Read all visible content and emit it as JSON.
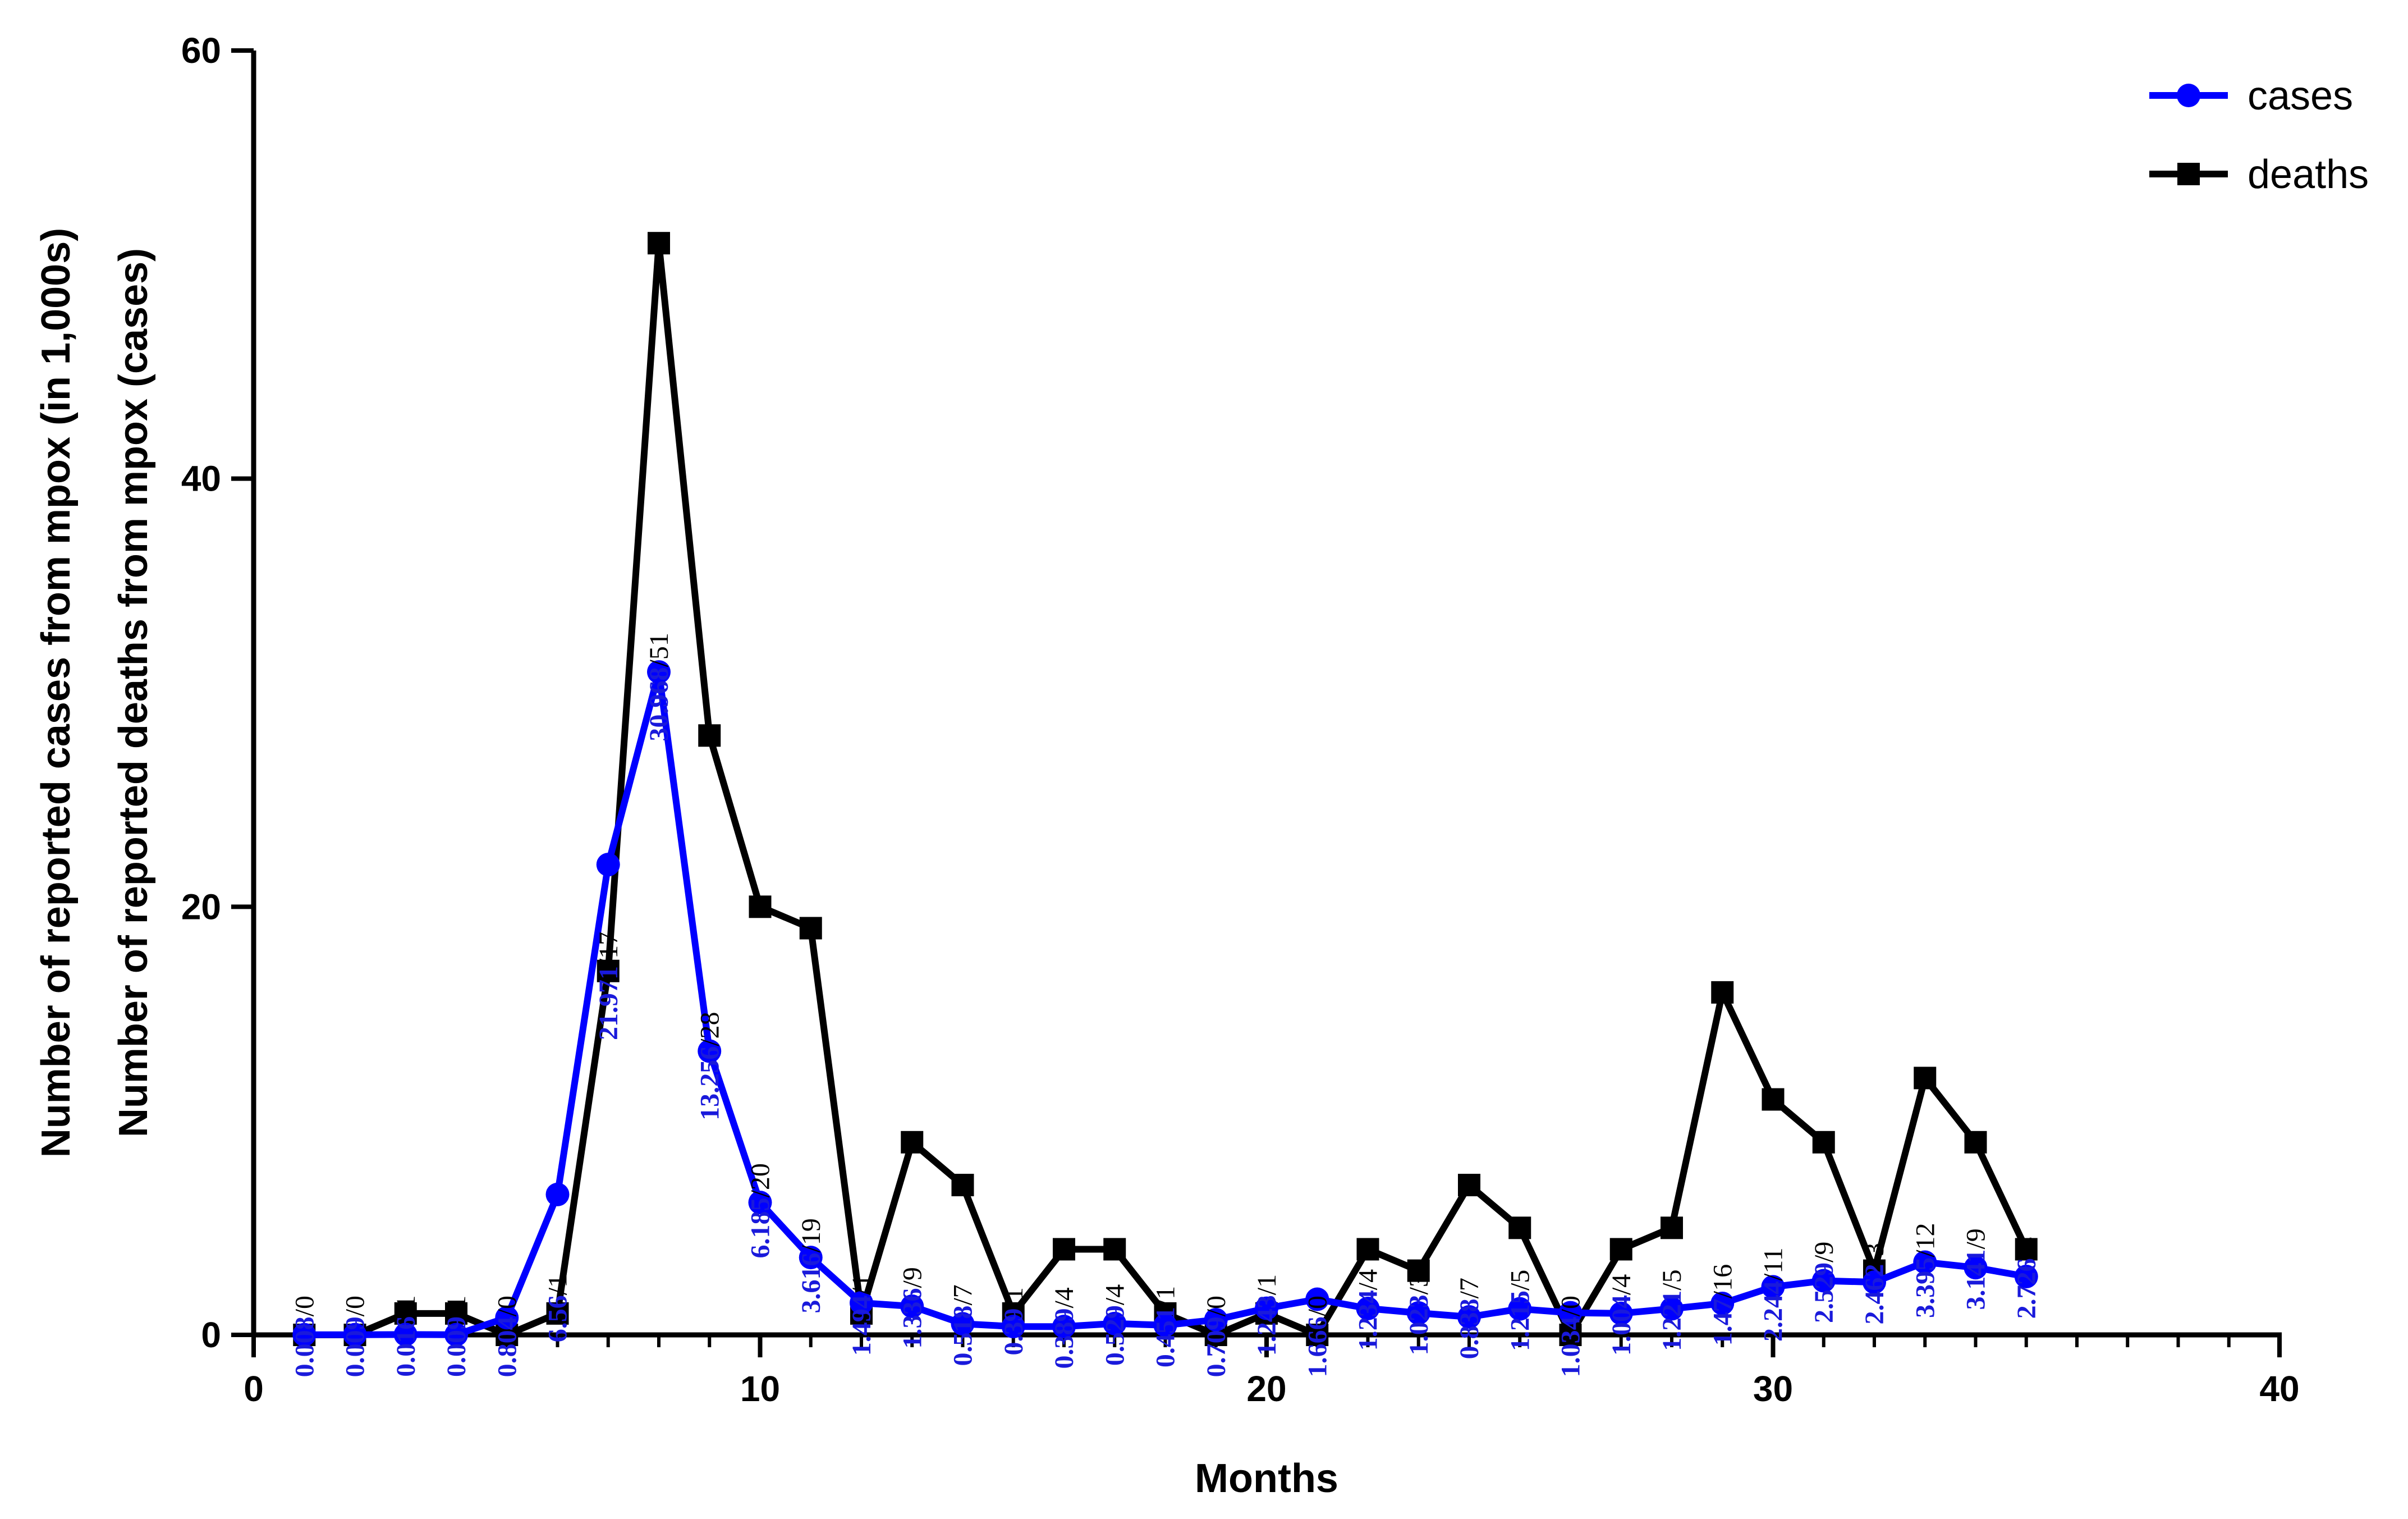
{
  "chart_data": {
    "type": "line",
    "title": "",
    "xlabel": "Months",
    "ylabel_lines": [
      "Number of reported cases from mpox (in 1,000s)",
      "Number of reported deaths from mpox (cases)"
    ],
    "xlim": [
      0,
      40
    ],
    "ylim": [
      0,
      60
    ],
    "x_ticks": [
      0,
      10,
      20,
      30,
      40
    ],
    "y_ticks": [
      0,
      20,
      40,
      60
    ],
    "grid": false,
    "legend_position": "top-right",
    "x": [
      1,
      2,
      3,
      4,
      5,
      6,
      7,
      8,
      9,
      10,
      11,
      12,
      13,
      14,
      15,
      16,
      17,
      18,
      19,
      20,
      21,
      22,
      23,
      24,
      25,
      26,
      27,
      28,
      29,
      30,
      31,
      32,
      33,
      34,
      35
    ],
    "series": [
      {
        "name": "cases",
        "color": "#0000ff",
        "marker": "circle",
        "values": [
          0.008,
          0.009,
          0.016,
          0.009,
          0.804,
          6.56,
          21.971,
          30.968,
          13.256,
          6.185,
          3.616,
          1.494,
          1.336,
          0.518,
          0.39,
          0.389,
          0.529,
          0.451,
          0.709,
          1.243,
          1.666,
          1.234,
          1.023,
          0.838,
          1.215,
          1.034,
          1.004,
          1.221,
          1.47,
          2.244,
          2.529,
          2.462,
          3.395,
          3.141,
          2.726
        ]
      },
      {
        "name": "deaths",
        "color": "#000000",
        "marker": "square",
        "values": [
          0,
          0,
          1,
          1,
          0,
          1,
          17,
          51,
          28,
          20,
          19,
          1,
          9,
          7,
          1,
          4,
          4,
          1,
          0,
          1,
          0,
          4,
          3,
          7,
          5,
          0,
          4,
          5,
          16,
          11,
          9,
          3,
          12,
          9,
          4
        ]
      }
    ],
    "annotations": [
      {
        "cases": "0.008",
        "deaths": "0"
      },
      {
        "cases": "0.009",
        "deaths": "0"
      },
      {
        "cases": "0.016",
        "deaths": "1"
      },
      {
        "cases": "0.009",
        "deaths": "1"
      },
      {
        "cases": "0.804",
        "deaths": "0"
      },
      {
        "cases": "6.56",
        "deaths": "1"
      },
      {
        "cases": "21.971",
        "deaths": "17"
      },
      {
        "cases": "30.968",
        "deaths": "51"
      },
      {
        "cases": "13.256",
        "deaths": "28"
      },
      {
        "cases": "6.185",
        "deaths": "20"
      },
      {
        "cases": "3.616",
        "deaths": "19"
      },
      {
        "cases": "1.494",
        "deaths": "1"
      },
      {
        "cases": "1.336",
        "deaths": "9"
      },
      {
        "cases": "0.518",
        "deaths": "7"
      },
      {
        "cases": "0.39",
        "deaths": "1"
      },
      {
        "cases": "0.389",
        "deaths": "4"
      },
      {
        "cases": "0.529",
        "deaths": "4"
      },
      {
        "cases": "0.451",
        "deaths": "1"
      },
      {
        "cases": "0.709",
        "deaths": "0"
      },
      {
        "cases": "1.243",
        "deaths": "1"
      },
      {
        "cases": "1.666",
        "deaths": "0"
      },
      {
        "cases": "1.234",
        "deaths": "4"
      },
      {
        "cases": "1.023",
        "deaths": "3"
      },
      {
        "cases": "0.838",
        "deaths": "7"
      },
      {
        "cases": "1.215",
        "deaths": "5"
      },
      {
        "cases": "1.034",
        "deaths": "0"
      },
      {
        "cases": "1.004",
        "deaths": "4"
      },
      {
        "cases": "1.221",
        "deaths": "5"
      },
      {
        "cases": "1.47",
        "deaths": "16"
      },
      {
        "cases": "2.244",
        "deaths": "11"
      },
      {
        "cases": "2.529",
        "deaths": "9"
      },
      {
        "cases": "2.462",
        "deaths": "3"
      },
      {
        "cases": "3.395",
        "deaths": "12"
      },
      {
        "cases": "3.141",
        "deaths": "9"
      },
      {
        "cases": "2.726",
        "deaths": "4"
      }
    ]
  }
}
